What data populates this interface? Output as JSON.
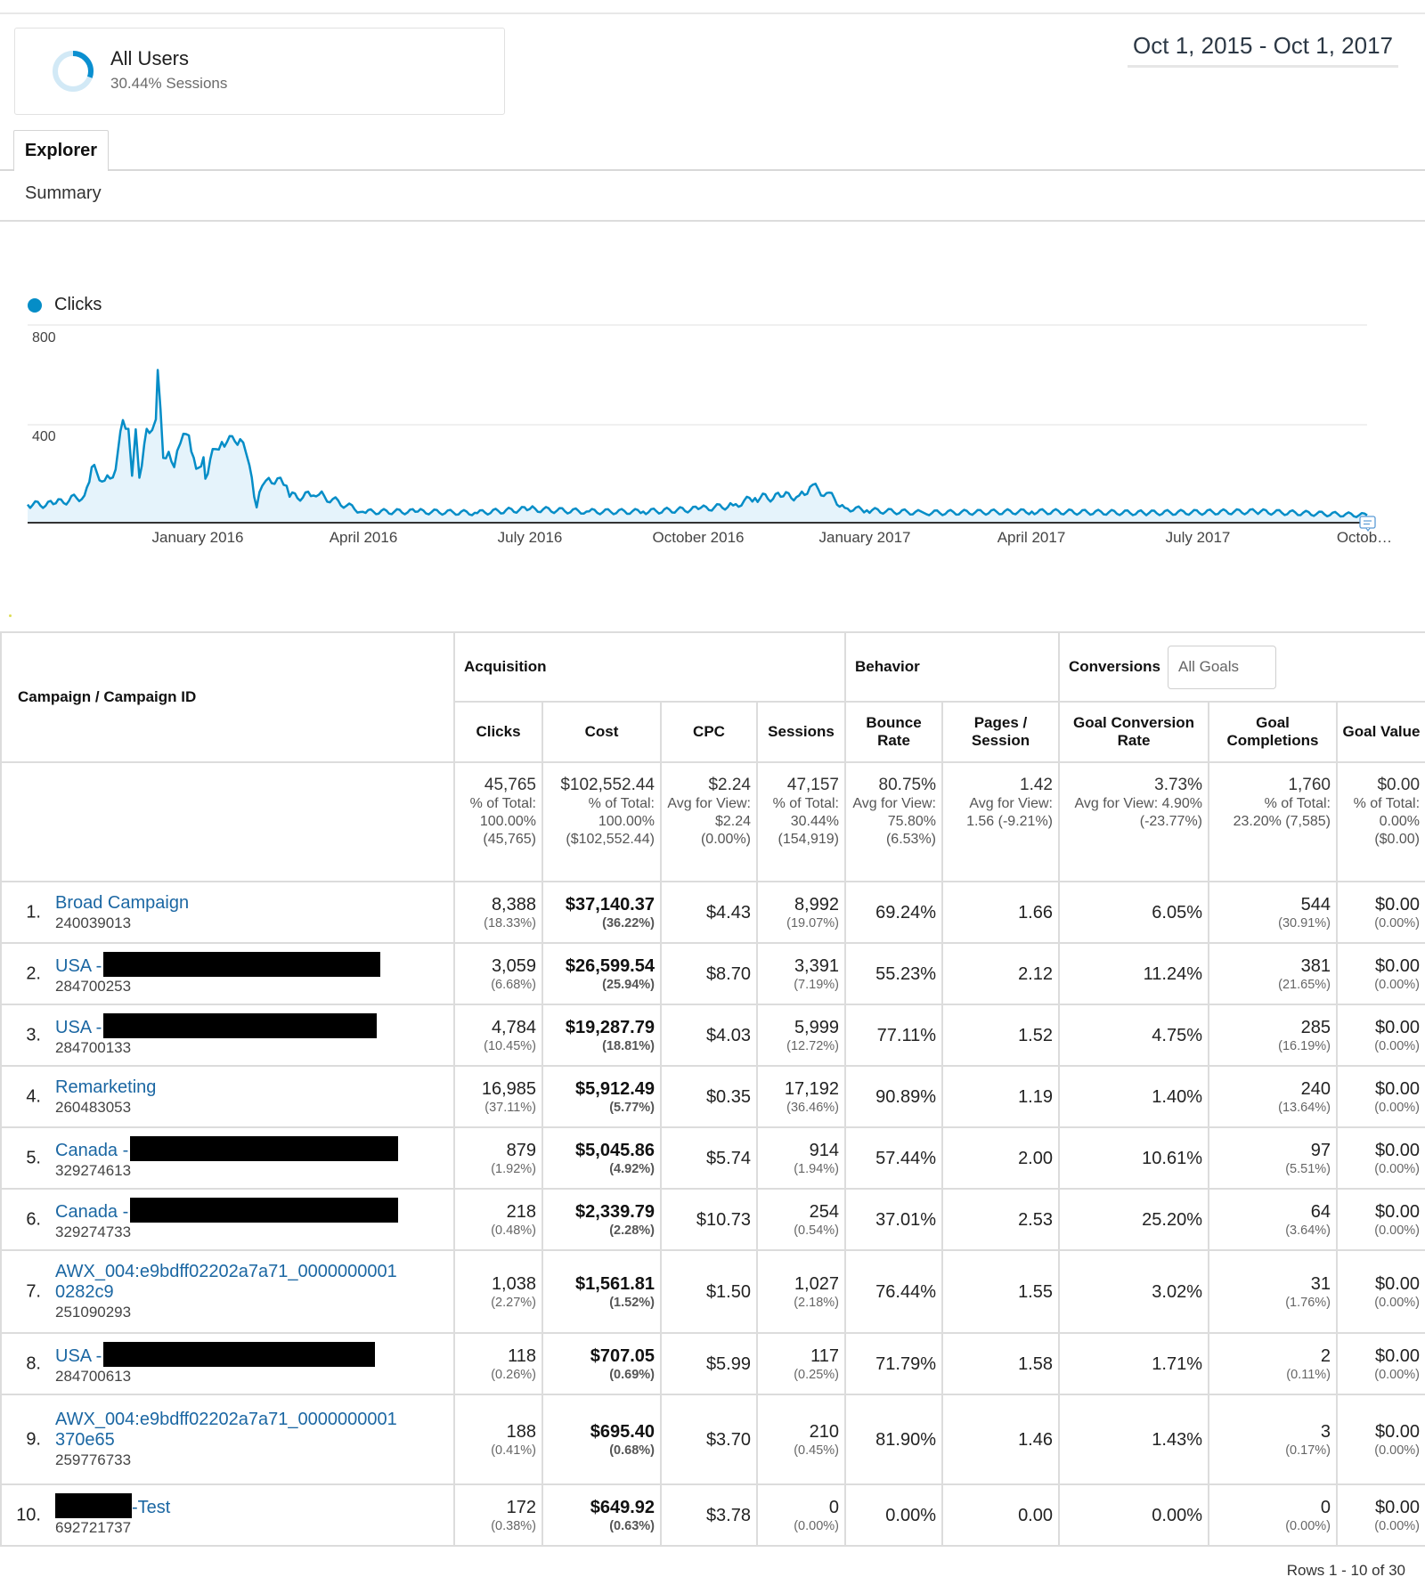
{
  "segment": {
    "title": "All Users",
    "subtitle": "30.44% Sessions",
    "percent": 30.44,
    "colors": {
      "arc": "#0a8fd0",
      "track": "#d2e9f6"
    }
  },
  "date_range": "Oct 1, 2015 - Oct 1, 2017",
  "tabs": [
    {
      "label": "Explorer",
      "active": true
    }
  ],
  "subnav": {
    "summary_label": "Summary"
  },
  "chart": {
    "legend_label": "Clicks",
    "legend_color": "#058dc7",
    "y_ticks": [
      "800",
      "400"
    ],
    "x_labels": [
      "January 2016",
      "April 2016",
      "July 2016",
      "October 2016",
      "January 2017",
      "April 2017",
      "July 2017",
      "Octob…"
    ]
  },
  "chart_data": {
    "type": "area",
    "title": "",
    "xlabel": "",
    "ylabel": "Clicks",
    "ylim": [
      0,
      800
    ],
    "grid": true,
    "legend_position": "top-left",
    "series": [
      {
        "name": "Clicks",
        "color": "#058dc7",
        "x": [
          "2015-10-01",
          "2015-10-15",
          "2015-11-01",
          "2015-11-05",
          "2015-11-12",
          "2015-11-18",
          "2015-11-22",
          "2015-11-25",
          "2015-11-27",
          "2015-11-29",
          "2015-12-01",
          "2015-12-05",
          "2015-12-08",
          "2015-12-10",
          "2015-12-11",
          "2015-12-14",
          "2015-12-17",
          "2015-12-20",
          "2015-12-25",
          "2015-12-28",
          "2016-01-01",
          "2016-01-05",
          "2016-01-06",
          "2016-01-10",
          "2016-01-15",
          "2016-01-25",
          "2016-01-30",
          "2016-02-03",
          "2016-02-06",
          "2016-02-08",
          "2016-02-16",
          "2016-02-21",
          "2016-03-05",
          "2016-03-08",
          "2016-04-01",
          "2016-05-01",
          "2016-06-01",
          "2016-07-01",
          "2016-08-01",
          "2016-09-01",
          "2016-10-01",
          "2016-10-20",
          "2016-11-01",
          "2016-11-15",
          "2016-11-25",
          "2016-12-01",
          "2016-12-10",
          "2016-12-20",
          "2017-01-01",
          "2017-02-01",
          "2017-04-01",
          "2017-06-01",
          "2017-08-01",
          "2017-10-01"
        ],
        "values": [
          73,
          75,
          110,
          225,
          170,
          215,
          415,
          380,
          190,
          378,
          182,
          380,
          375,
          418,
          618,
          262,
          287,
          225,
          360,
          353,
          218,
          265,
          178,
          298,
          327,
          338,
          233,
          62,
          149,
          170,
          182,
          105,
          110,
          113,
          44,
          45,
          40,
          55,
          45,
          45,
          55,
          70,
          100,
          105,
          110,
          145,
          120,
          60,
          50,
          40,
          45,
          40,
          45,
          30
        ]
      }
    ]
  },
  "table": {
    "dimension_header": "Campaign / Campaign ID",
    "groups": [
      {
        "label": "Acquisition",
        "span": 4
      },
      {
        "label": "Behavior",
        "span": 2
      },
      {
        "label": "Conversions",
        "span": 3,
        "selector": "All Goals"
      }
    ],
    "columns": [
      "Clicks",
      "Cost",
      "CPC",
      "Sessions",
      "Bounce Rate",
      "Pages / Session",
      "Goal Conversion Rate",
      "Goal Completions",
      "Goal Value"
    ],
    "totals": [
      {
        "main": "45,765",
        "sub": "% of Total: 100.00% (45,765)"
      },
      {
        "main": "$102,552.44",
        "sub": "% of Total: 100.00% ($102,552.44)"
      },
      {
        "main": "$2.24",
        "sub": "Avg for View: $2.24 (0.00%)"
      },
      {
        "main": "47,157",
        "sub": "% of Total: 30.44% (154,919)"
      },
      {
        "main": "80.75%",
        "sub": "Avg for View: 75.80% (6.53%)"
      },
      {
        "main": "1.42",
        "sub": "Avg for View: 1.56 (-9.21%)"
      },
      {
        "main": "3.73%",
        "sub": "Avg for View: 4.90% (-23.77%)"
      },
      {
        "main": "1,760",
        "sub": "% of Total: 23.20% (7,585)"
      },
      {
        "main": "$0.00",
        "sub": "% of Total: 0.00% ($0.00)"
      }
    ],
    "rows": [
      {
        "num": "1.",
        "name": "Broad Campaign",
        "id": "240039013",
        "clicks": "8,388",
        "clicks_pct": "(18.33%)",
        "cost": "$37,140.37",
        "cost_pct": "(36.22%)",
        "cpc": "$4.43",
        "sessions": "8,992",
        "sessions_pct": "(19.07%)",
        "bounce": "69.24%",
        "pages": "1.66",
        "gcr": "6.05%",
        "gc": "544",
        "gc_pct": "(30.91%)",
        "gv": "$0.00",
        "gv_pct": "(0.00%)"
      },
      {
        "num": "2.",
        "name": "USA -",
        "id": "284700253",
        "clicks": "3,059",
        "clicks_pct": "(6.68%)",
        "cost": "$26,599.54",
        "cost_pct": "(25.94%)",
        "cpc": "$8.70",
        "sessions": "3,391",
        "sessions_pct": "(7.19%)",
        "bounce": "55.23%",
        "pages": "2.12",
        "gcr": "11.24%",
        "gc": "381",
        "gc_pct": "(21.65%)",
        "gv": "$0.00",
        "gv_pct": "(0.00%)"
      },
      {
        "num": "3.",
        "name": "USA -",
        "id": "284700133",
        "clicks": "4,784",
        "clicks_pct": "(10.45%)",
        "cost": "$19,287.79",
        "cost_pct": "(18.81%)",
        "cpc": "$4.03",
        "sessions": "5,999",
        "sessions_pct": "(12.72%)",
        "bounce": "77.11%",
        "pages": "1.52",
        "gcr": "4.75%",
        "gc": "285",
        "gc_pct": "(16.19%)",
        "gv": "$0.00",
        "gv_pct": "(0.00%)"
      },
      {
        "num": "4.",
        "name": "Remarketing",
        "id": "260483053",
        "clicks": "16,985",
        "clicks_pct": "(37.11%)",
        "cost": "$5,912.49",
        "cost_pct": "(5.77%)",
        "cpc": "$0.35",
        "sessions": "17,192",
        "sessions_pct": "(36.46%)",
        "bounce": "90.89%",
        "pages": "1.19",
        "gcr": "1.40%",
        "gc": "240",
        "gc_pct": "(13.64%)",
        "gv": "$0.00",
        "gv_pct": "(0.00%)"
      },
      {
        "num": "5.",
        "name": "Canada -",
        "id": "329274613",
        "clicks": "879",
        "clicks_pct": "(1.92%)",
        "cost": "$5,045.86",
        "cost_pct": "(4.92%)",
        "cpc": "$5.74",
        "sessions": "914",
        "sessions_pct": "(1.94%)",
        "bounce": "57.44%",
        "pages": "2.00",
        "gcr": "10.61%",
        "gc": "97",
        "gc_pct": "(5.51%)",
        "gv": "$0.00",
        "gv_pct": "(0.00%)"
      },
      {
        "num": "6.",
        "name": "Canada -",
        "id": "329274733",
        "clicks": "218",
        "clicks_pct": "(0.48%)",
        "cost": "$2,339.79",
        "cost_pct": "(2.28%)",
        "cpc": "$10.73",
        "sessions": "254",
        "sessions_pct": "(0.54%)",
        "bounce": "37.01%",
        "pages": "2.53",
        "gcr": "25.20%",
        "gc": "64",
        "gc_pct": "(3.64%)",
        "gv": "$0.00",
        "gv_pct": "(0.00%)"
      },
      {
        "num": "7.",
        "name": "AWX_004:e9bdff02202a7a71_0000000001",
        "name2": "0282c9",
        "id": "251090293",
        "clicks": "1,038",
        "clicks_pct": "(2.27%)",
        "cost": "$1,561.81",
        "cost_pct": "(1.52%)",
        "cpc": "$1.50",
        "sessions": "1,027",
        "sessions_pct": "(2.18%)",
        "bounce": "76.44%",
        "pages": "1.55",
        "gcr": "3.02%",
        "gc": "31",
        "gc_pct": "(1.76%)",
        "gv": "$0.00",
        "gv_pct": "(0.00%)"
      },
      {
        "num": "8.",
        "name": "USA -",
        "id": "284700613",
        "clicks": "118",
        "clicks_pct": "(0.26%)",
        "cost": "$707.05",
        "cost_pct": "(0.69%)",
        "cpc": "$5.99",
        "sessions": "117",
        "sessions_pct": "(0.25%)",
        "bounce": "71.79%",
        "pages": "1.58",
        "gcr": "1.71%",
        "gc": "2",
        "gc_pct": "(0.11%)",
        "gv": "$0.00",
        "gv_pct": "(0.00%)"
      },
      {
        "num": "9.",
        "name": "AWX_004:e9bdff02202a7a71_0000000001",
        "name2": "370e65",
        "id": "259776733",
        "clicks": "188",
        "clicks_pct": "(0.41%)",
        "cost": "$695.40",
        "cost_pct": "(0.68%)",
        "cpc": "$3.70",
        "sessions": "210",
        "sessions_pct": "(0.45%)",
        "bounce": "81.90%",
        "pages": "1.46",
        "gcr": "1.43%",
        "gc": "3",
        "gc_pct": "(0.17%)",
        "gv": "$0.00",
        "gv_pct": "(0.00%)"
      },
      {
        "num": "10.",
        "name": "-Test",
        "id": "692721737",
        "clicks": "172",
        "clicks_pct": "(0.38%)",
        "cost": "$649.92",
        "cost_pct": "(0.63%)",
        "cpc": "$3.78",
        "sessions": "0",
        "sessions_pct": "(0.00%)",
        "bounce": "0.00%",
        "pages": "0.00",
        "gcr": "0.00%",
        "gc": "0",
        "gc_pct": "(0.00%)",
        "gv": "$0.00",
        "gv_pct": "(0.00%)"
      }
    ],
    "pagination": "Rows 1 - 10 of 30"
  },
  "colors": {
    "link": "#1b67a3",
    "chart_line": "#058dc7",
    "chart_fill": "#e5f3fb",
    "grid": "#ececec",
    "border": "#dcdcdc"
  }
}
